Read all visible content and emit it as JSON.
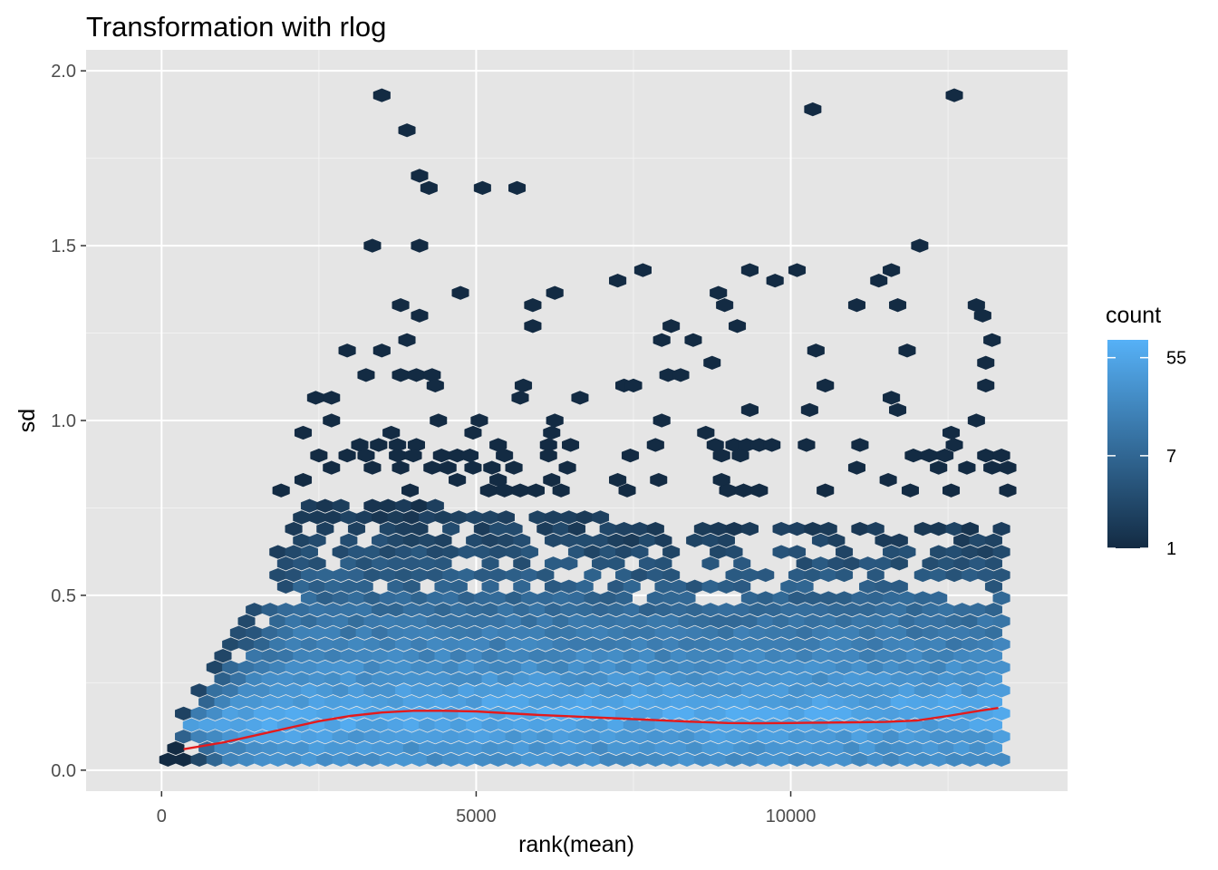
{
  "chart_data": {
    "type": "hexbin",
    "title": "Transformation with rlog",
    "xlabel": "rank(mean)",
    "ylabel": "sd",
    "xlim": [
      -1200,
      14400
    ],
    "ylim": [
      -0.06,
      2.06
    ],
    "x_ticks": [
      {
        "value": 0,
        "label": "0"
      },
      {
        "value": 5000,
        "label": "5000"
      },
      {
        "value": 10000,
        "label": "10000"
      }
    ],
    "y_ticks": [
      {
        "value": 0.0,
        "label": "0.0"
      },
      {
        "value": 0.5,
        "label": "0.5"
      },
      {
        "value": 1.0,
        "label": "1.0"
      },
      {
        "value": 1.5,
        "label": "1.5"
      },
      {
        "value": 2.0,
        "label": "2.0"
      }
    ],
    "grid": true,
    "panel_background": "#e5e5e5",
    "legend": {
      "title": "count",
      "placement": "right",
      "scale": "log",
      "min": 1,
      "max": 80,
      "low_color": "#132b43",
      "high_color": "#56b1f7",
      "breaks": [
        {
          "value": 55,
          "label": "55"
        },
        {
          "value": 7,
          "label": "7"
        },
        {
          "value": 1,
          "label": "1"
        }
      ]
    },
    "smooth": {
      "color": "#e41a1c",
      "points": [
        [
          350,
          0.06
        ],
        [
          1000,
          0.08
        ],
        [
          1500,
          0.1
        ],
        [
          2000,
          0.12
        ],
        [
          2500,
          0.14
        ],
        [
          3000,
          0.155
        ],
        [
          3500,
          0.165
        ],
        [
          4000,
          0.17
        ],
        [
          4500,
          0.17
        ],
        [
          5000,
          0.168
        ],
        [
          5500,
          0.163
        ],
        [
          6000,
          0.158
        ],
        [
          6500,
          0.154
        ],
        [
          7000,
          0.15
        ],
        [
          7500,
          0.146
        ],
        [
          8000,
          0.142
        ],
        [
          8500,
          0.138
        ],
        [
          9000,
          0.135
        ],
        [
          9500,
          0.134
        ],
        [
          10000,
          0.135
        ],
        [
          10500,
          0.136
        ],
        [
          11000,
          0.137
        ],
        [
          11500,
          0.138
        ],
        [
          12000,
          0.142
        ],
        [
          12500,
          0.155
        ],
        [
          13000,
          0.17
        ],
        [
          13300,
          0.178
        ]
      ]
    },
    "hex_bins": {
      "x_step": 250,
      "y_step": 0.033,
      "outliers": [
        [
          3500,
          1.93
        ],
        [
          12600,
          1.93
        ],
        [
          10350,
          1.89
        ],
        [
          3900,
          1.83
        ],
        [
          4100,
          1.7
        ],
        [
          4250,
          1.665
        ],
        [
          5100,
          1.665
        ],
        [
          5650,
          1.665
        ],
        [
          3350,
          1.5
        ],
        [
          4100,
          1.5
        ],
        [
          12050,
          1.5
        ],
        [
          7650,
          1.43
        ],
        [
          9350,
          1.43
        ],
        [
          10100,
          1.43
        ],
        [
          11600,
          1.43
        ],
        [
          7250,
          1.4
        ],
        [
          9750,
          1.4
        ],
        [
          11400,
          1.4
        ],
        [
          4750,
          1.365
        ],
        [
          6250,
          1.365
        ],
        [
          8850,
          1.365
        ],
        [
          3800,
          1.33
        ],
        [
          5900,
          1.33
        ],
        [
          8950,
          1.33
        ],
        [
          11050,
          1.33
        ],
        [
          11700,
          1.33
        ],
        [
          12950,
          1.33
        ],
        [
          4100,
          1.3
        ],
        [
          13050,
          1.3
        ],
        [
          5900,
          1.27
        ],
        [
          8100,
          1.27
        ],
        [
          9150,
          1.27
        ],
        [
          3900,
          1.23
        ],
        [
          7950,
          1.23
        ],
        [
          8450,
          1.23
        ],
        [
          13200,
          1.23
        ],
        [
          2950,
          1.2
        ],
        [
          3500,
          1.2
        ],
        [
          10400,
          1.2
        ],
        [
          11850,
          1.2
        ],
        [
          8750,
          1.165
        ],
        [
          13100,
          1.165
        ],
        [
          3250,
          1.13
        ],
        [
          3800,
          1.13
        ],
        [
          4050,
          1.13
        ],
        [
          4300,
          1.13
        ],
        [
          8050,
          1.13
        ],
        [
          8250,
          1.13
        ],
        [
          4350,
          1.1
        ],
        [
          5750,
          1.1
        ],
        [
          7350,
          1.1
        ],
        [
          7500,
          1.1
        ],
        [
          10550,
          1.1
        ],
        [
          13100,
          1.1
        ],
        [
          2450,
          1.065
        ],
        [
          2700,
          1.065
        ],
        [
          5700,
          1.065
        ],
        [
          6650,
          1.065
        ],
        [
          11600,
          1.065
        ],
        [
          10300,
          1.03
        ],
        [
          9350,
          1.03
        ],
        [
          11700,
          1.03
        ],
        [
          2700,
          1.0
        ],
        [
          4400,
          1.0
        ],
        [
          5050,
          1.0
        ],
        [
          6250,
          1.0
        ],
        [
          7950,
          1.0
        ],
        [
          12950,
          1.0
        ],
        [
          2250,
          0.965
        ],
        [
          3650,
          0.965
        ],
        [
          4950,
          0.965
        ],
        [
          6200,
          0.965
        ],
        [
          8650,
          0.965
        ],
        [
          12550,
          0.965
        ],
        [
          3150,
          0.93
        ],
        [
          3450,
          0.93
        ],
        [
          3750,
          0.93
        ],
        [
          4050,
          0.93
        ],
        [
          5350,
          0.93
        ],
        [
          6150,
          0.93
        ],
        [
          6500,
          0.93
        ],
        [
          7850,
          0.93
        ],
        [
          8800,
          0.93
        ],
        [
          9100,
          0.93
        ],
        [
          9300,
          0.93
        ],
        [
          9500,
          0.93
        ],
        [
          9700,
          0.93
        ],
        [
          10250,
          0.93
        ],
        [
          11100,
          0.93
        ],
        [
          12600,
          0.93
        ],
        [
          2500,
          0.9
        ],
        [
          2950,
          0.9
        ],
        [
          3250,
          0.9
        ],
        [
          3750,
          0.9
        ],
        [
          4000,
          0.9
        ],
        [
          4450,
          0.9
        ],
        [
          4700,
          0.9
        ],
        [
          4900,
          0.9
        ],
        [
          5450,
          0.9
        ],
        [
          6150,
          0.9
        ],
        [
          7450,
          0.9
        ],
        [
          8900,
          0.9
        ],
        [
          9200,
          0.9
        ],
        [
          11950,
          0.9
        ],
        [
          12200,
          0.9
        ],
        [
          12450,
          0.9
        ],
        [
          13100,
          0.9
        ],
        [
          13350,
          0.9
        ],
        [
          2700,
          0.865
        ],
        [
          3350,
          0.865
        ],
        [
          3800,
          0.865
        ],
        [
          4300,
          0.865
        ],
        [
          4550,
          0.865
        ],
        [
          4950,
          0.865
        ],
        [
          5250,
          0.865
        ],
        [
          5600,
          0.865
        ],
        [
          6450,
          0.865
        ],
        [
          11050,
          0.865
        ],
        [
          12350,
          0.865
        ],
        [
          12800,
          0.865
        ],
        [
          13200,
          0.865
        ],
        [
          13450,
          0.865
        ],
        [
          2250,
          0.83
        ],
        [
          4700,
          0.83
        ],
        [
          5350,
          0.83
        ],
        [
          6200,
          0.83
        ],
        [
          7250,
          0.83
        ],
        [
          7900,
          0.83
        ],
        [
          8900,
          0.83
        ],
        [
          11550,
          0.83
        ],
        [
          1900,
          0.8
        ],
        [
          3950,
          0.8
        ],
        [
          5200,
          0.8
        ],
        [
          5450,
          0.8
        ],
        [
          5700,
          0.8
        ],
        [
          5950,
          0.8
        ],
        [
          6350,
          0.8
        ],
        [
          7400,
          0.8
        ],
        [
          9000,
          0.8
        ],
        [
          9250,
          0.8
        ],
        [
          9500,
          0.8
        ],
        [
          10550,
          0.8
        ],
        [
          11900,
          0.8
        ],
        [
          12550,
          0.8
        ],
        [
          13450,
          0.8
        ]
      ],
      "dense_region": {
        "x_range": [
          100,
          13450
        ],
        "y_bottom": 0.03,
        "y_top_profile": [
          [
            100,
            0.09
          ],
          [
            800,
            0.3
          ],
          [
            1500,
            0.52
          ],
          [
            2300,
            0.76
          ],
          [
            4000,
            0.76
          ],
          [
            6000,
            0.75
          ],
          [
            8000,
            0.7
          ],
          [
            10000,
            0.72
          ],
          [
            12000,
            0.72
          ],
          [
            13450,
            0.7
          ]
        ]
      }
    }
  }
}
